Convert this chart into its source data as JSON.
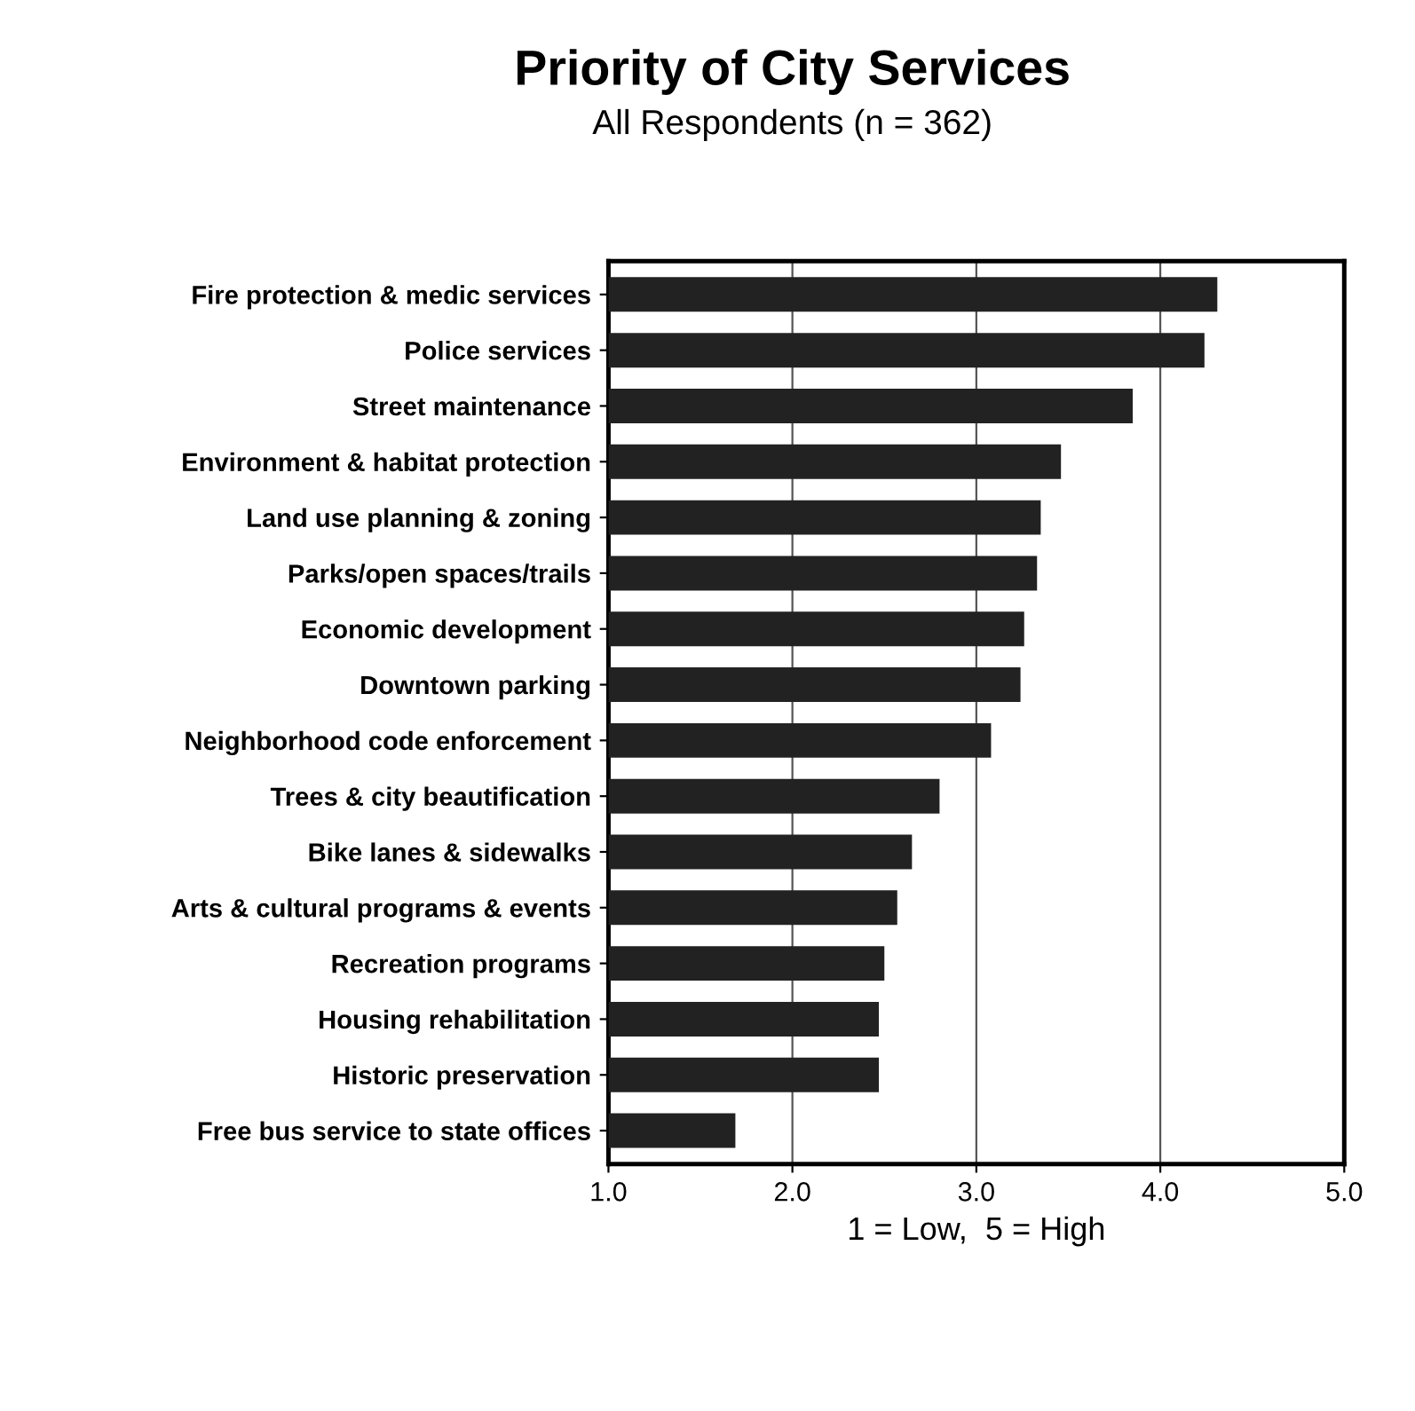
{
  "chart_data": {
    "type": "bar",
    "orientation": "horizontal",
    "title": "Priority of City Services",
    "subtitle": "All Respondents (n = 362)",
    "xlabel": "1 = Low,  5 = High",
    "categories": [
      "Fire protection & medic services",
      "Police services",
      "Street maintenance",
      "Environment & habitat protection",
      "Land use planning & zoning",
      "Parks/open spaces/trails",
      "Economic development",
      "Downtown parking",
      "Neighborhood code enforcement",
      "Trees & city beautification",
      "Bike lanes & sidewalks",
      "Arts & cultural programs & events",
      "Recreation programs",
      "Housing rehabilitation",
      "Historic preservation",
      "Free bus service to state offices"
    ],
    "values": [
      4.31,
      4.24,
      3.85,
      3.46,
      3.35,
      3.33,
      3.26,
      3.24,
      3.08,
      2.8,
      2.65,
      2.57,
      2.5,
      2.47,
      2.47,
      1.69
    ],
    "color": "#222222",
    "xlim": [
      1.0,
      5.0
    ],
    "xticks": [
      {
        "value": 1.0,
        "label": "1.0"
      },
      {
        "value": 2.0,
        "label": "2.0"
      },
      {
        "value": 3.0,
        "label": "3.0"
      },
      {
        "value": 4.0,
        "label": "4.0"
      },
      {
        "value": 5.0,
        "label": "5.0"
      }
    ],
    "grid": "x"
  }
}
